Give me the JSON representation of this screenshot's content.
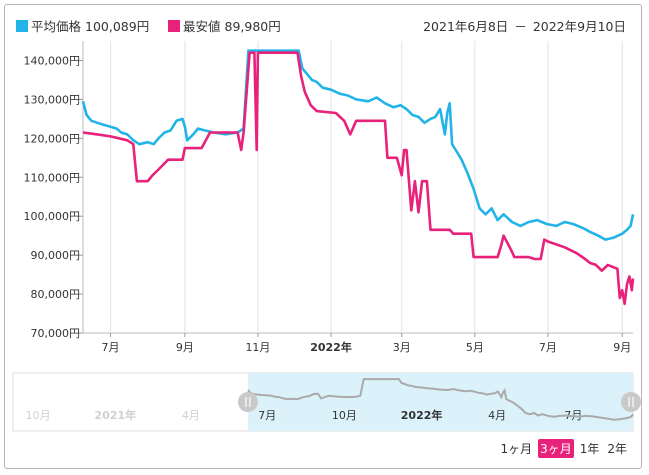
{
  "legend": {
    "avg_label": "平均価格",
    "avg_value": "100,089円",
    "min_label": "最安値",
    "min_value": "89,980円"
  },
  "range": {
    "start": "2021年6月8日",
    "sep": "－",
    "end": "2022年9月10日"
  },
  "colors": {
    "avg": "#22b4e8",
    "min": "#e8217a",
    "nav_line": "#aaaaaa",
    "nav_fill": "#dbf2fb"
  },
  "period_buttons": [
    {
      "label": "1ヶ月",
      "active": false
    },
    {
      "label": "3ヶ月",
      "active": true
    },
    {
      "label": "1年",
      "active": false
    },
    {
      "label": "2年",
      "active": false
    }
  ],
  "chart_data": {
    "type": "line",
    "title": "",
    "xlabel": "",
    "ylabel": "",
    "x_range": [
      "2021-06-08",
      "2022-09-10"
    ],
    "ylim": [
      70000,
      145000
    ],
    "y_ticks": [
      {
        "value": 70000,
        "label": "70,000円"
      },
      {
        "value": 80000,
        "label": "80,000円"
      },
      {
        "value": 90000,
        "label": "90,000円"
      },
      {
        "value": 100000,
        "label": "100,000円"
      },
      {
        "value": 110000,
        "label": "110,000円"
      },
      {
        "value": 120000,
        "label": "120,000円"
      },
      {
        "value": 130000,
        "label": "130,000円"
      },
      {
        "value": 140000,
        "label": "140,000円"
      }
    ],
    "x_ticks": [
      {
        "date": "2021-07-01",
        "label": "7月",
        "bold": false
      },
      {
        "date": "2021-09-01",
        "label": "9月",
        "bold": false
      },
      {
        "date": "2021-11-01",
        "label": "11月",
        "bold": false
      },
      {
        "date": "2022-01-01",
        "label": "2022年",
        "bold": true
      },
      {
        "date": "2022-03-01",
        "label": "3月",
        "bold": false
      },
      {
        "date": "2022-05-01",
        "label": "5月",
        "bold": false
      },
      {
        "date": "2022-07-01",
        "label": "7月",
        "bold": false
      },
      {
        "date": "2022-09-01",
        "label": "9月",
        "bold": false
      }
    ],
    "grid": {
      "vertical": true,
      "horizontal": false
    },
    "legend_position": "top-left",
    "series": [
      {
        "name": "平均価格",
        "color": "#22b4e8",
        "points": [
          [
            "2021-06-08",
            129500
          ],
          [
            "2021-06-11",
            126000
          ],
          [
            "2021-06-15",
            124500
          ],
          [
            "2021-06-20",
            124000
          ],
          [
            "2021-06-25",
            123500
          ],
          [
            "2021-07-01",
            123000
          ],
          [
            "2021-07-06",
            122500
          ],
          [
            "2021-07-10",
            121500
          ],
          [
            "2021-07-15",
            121000
          ],
          [
            "2021-07-20",
            119500
          ],
          [
            "2021-07-25",
            118500
          ],
          [
            "2021-08-01",
            119000
          ],
          [
            "2021-08-06",
            118500
          ],
          [
            "2021-08-10",
            120000
          ],
          [
            "2021-08-15",
            121500
          ],
          [
            "2021-08-20",
            122000
          ],
          [
            "2021-08-25",
            124500
          ],
          [
            "2021-08-30",
            125000
          ],
          [
            "2021-09-01",
            123000
          ],
          [
            "2021-09-03",
            119500
          ],
          [
            "2021-09-08",
            121000
          ],
          [
            "2021-09-12",
            122500
          ],
          [
            "2021-09-18",
            122000
          ],
          [
            "2021-09-25",
            121500
          ],
          [
            "2021-10-05",
            121000
          ],
          [
            "2021-10-15",
            121500
          ],
          [
            "2021-10-20",
            122500
          ],
          [
            "2021-10-24",
            142500
          ],
          [
            "2021-11-01",
            142500
          ],
          [
            "2021-11-15",
            142500
          ],
          [
            "2021-12-01",
            142500
          ],
          [
            "2021-12-05",
            142500
          ],
          [
            "2021-12-08",
            138000
          ],
          [
            "2021-12-12",
            136500
          ],
          [
            "2021-12-16",
            135000
          ],
          [
            "2021-12-20",
            134500
          ],
          [
            "2021-12-25",
            133000
          ],
          [
            "2022-01-01",
            132500
          ],
          [
            "2022-01-08",
            131500
          ],
          [
            "2022-01-15",
            131000
          ],
          [
            "2022-01-22",
            130000
          ],
          [
            "2022-02-01",
            129500
          ],
          [
            "2022-02-08",
            130500
          ],
          [
            "2022-02-15",
            129000
          ],
          [
            "2022-02-22",
            128000
          ],
          [
            "2022-02-28",
            128500
          ],
          [
            "2022-03-05",
            127500
          ],
          [
            "2022-03-10",
            126000
          ],
          [
            "2022-03-15",
            125500
          ],
          [
            "2022-03-20",
            124000
          ],
          [
            "2022-03-25",
            125000
          ],
          [
            "2022-03-29",
            125500
          ],
          [
            "2022-04-02",
            127500
          ],
          [
            "2022-04-06",
            121000
          ],
          [
            "2022-04-08",
            126500
          ],
          [
            "2022-04-10",
            129000
          ],
          [
            "2022-04-12",
            118500
          ],
          [
            "2022-04-15",
            117000
          ],
          [
            "2022-04-20",
            114500
          ],
          [
            "2022-04-25",
            111000
          ],
          [
            "2022-04-30",
            107000
          ],
          [
            "2022-05-05",
            102000
          ],
          [
            "2022-05-10",
            100500
          ],
          [
            "2022-05-15",
            102000
          ],
          [
            "2022-05-20",
            99000
          ],
          [
            "2022-05-25",
            100500
          ],
          [
            "2022-06-01",
            98500
          ],
          [
            "2022-06-08",
            97500
          ],
          [
            "2022-06-15",
            98500
          ],
          [
            "2022-06-22",
            99000
          ],
          [
            "2022-06-30",
            98000
          ],
          [
            "2022-07-08",
            97500
          ],
          [
            "2022-07-15",
            98500
          ],
          [
            "2022-07-22",
            98000
          ],
          [
            "2022-07-30",
            97000
          ],
          [
            "2022-08-05",
            96000
          ],
          [
            "2022-08-12",
            95000
          ],
          [
            "2022-08-18",
            94000
          ],
          [
            "2022-08-25",
            94500
          ],
          [
            "2022-09-01",
            95500
          ],
          [
            "2022-09-05",
            96500
          ],
          [
            "2022-09-08",
            97500
          ],
          [
            "2022-09-10",
            100500
          ]
        ]
      },
      {
        "name": "最安値",
        "color": "#e8217a",
        "points": [
          [
            "2021-06-08",
            121500
          ],
          [
            "2021-06-20",
            121000
          ],
          [
            "2021-07-01",
            120500
          ],
          [
            "2021-07-08",
            120000
          ],
          [
            "2021-07-15",
            119500
          ],
          [
            "2021-07-20",
            118500
          ],
          [
            "2021-07-23",
            109000
          ],
          [
            "2021-08-01",
            109000
          ],
          [
            "2021-08-05",
            110500
          ],
          [
            "2021-08-10",
            112000
          ],
          [
            "2021-08-18",
            114500
          ],
          [
            "2021-08-30",
            114500
          ],
          [
            "2021-09-01",
            117500
          ],
          [
            "2021-09-15",
            117500
          ],
          [
            "2021-09-22",
            121500
          ],
          [
            "2021-10-15",
            121500
          ],
          [
            "2021-10-18",
            117000
          ],
          [
            "2021-10-20",
            121500
          ],
          [
            "2021-10-25",
            142000
          ],
          [
            "2021-10-29",
            142000
          ],
          [
            "2021-10-31",
            117000
          ],
          [
            "2021-11-01",
            142000
          ],
          [
            "2021-12-01",
            142000
          ],
          [
            "2021-12-04",
            142000
          ],
          [
            "2021-12-07",
            136000
          ],
          [
            "2021-12-10",
            132000
          ],
          [
            "2021-12-15",
            128500
          ],
          [
            "2021-12-20",
            127000
          ],
          [
            "2022-01-05",
            126500
          ],
          [
            "2022-01-12",
            124500
          ],
          [
            "2022-01-17",
            121000
          ],
          [
            "2022-01-22",
            124500
          ],
          [
            "2022-02-15",
            124500
          ],
          [
            "2022-02-17",
            115000
          ],
          [
            "2022-02-25",
            115000
          ],
          [
            "2022-03-01",
            110500
          ],
          [
            "2022-03-03",
            117000
          ],
          [
            "2022-03-05",
            117000
          ],
          [
            "2022-03-09",
            101500
          ],
          [
            "2022-03-12",
            109000
          ],
          [
            "2022-03-15",
            101000
          ],
          [
            "2022-03-18",
            109000
          ],
          [
            "2022-03-22",
            109000
          ],
          [
            "2022-03-25",
            96500
          ],
          [
            "2022-04-10",
            96500
          ],
          [
            "2022-04-13",
            95500
          ],
          [
            "2022-04-28",
            95500
          ],
          [
            "2022-04-30",
            89500
          ],
          [
            "2022-05-20",
            89500
          ],
          [
            "2022-05-23",
            92500
          ],
          [
            "2022-05-25",
            95000
          ],
          [
            "2022-05-31",
            91500
          ],
          [
            "2022-06-03",
            89500
          ],
          [
            "2022-06-15",
            89500
          ],
          [
            "2022-06-20",
            89000
          ],
          [
            "2022-06-25",
            89000
          ],
          [
            "2022-06-28",
            94000
          ],
          [
            "2022-07-01",
            93500
          ],
          [
            "2022-07-15",
            92000
          ],
          [
            "2022-07-25",
            90500
          ],
          [
            "2022-08-01",
            89000
          ],
          [
            "2022-08-05",
            88000
          ],
          [
            "2022-08-10",
            87500
          ],
          [
            "2022-08-15",
            86000
          ],
          [
            "2022-08-20",
            87500
          ],
          [
            "2022-08-28",
            86500
          ],
          [
            "2022-08-30",
            79000
          ],
          [
            "2022-09-01",
            81000
          ],
          [
            "2022-09-03",
            77500
          ],
          [
            "2022-09-05",
            82500
          ],
          [
            "2022-09-07",
            84500
          ],
          [
            "2022-09-09",
            81000
          ],
          [
            "2022-09-10",
            84000
          ]
        ]
      }
    ]
  },
  "navigator": {
    "x_range": [
      "2020-09-01",
      "2022-09-10"
    ],
    "window": [
      "2021-06-08",
      "2022-09-10"
    ],
    "ticks": [
      {
        "date": "2020-10-01",
        "label": "10月",
        "bold": false
      },
      {
        "date": "2021-01-01",
        "label": "2021年",
        "bold": true
      },
      {
        "date": "2021-04-01",
        "label": "4月",
        "bold": false
      },
      {
        "date": "2021-07-01",
        "label": "7月",
        "bold": false
      },
      {
        "date": "2021-10-01",
        "label": "10月",
        "bold": false
      },
      {
        "date": "2022-01-01",
        "label": "2022年",
        "bold": true
      },
      {
        "date": "2022-04-01",
        "label": "4月",
        "bold": false
      },
      {
        "date": "2022-07-01",
        "label": "7月",
        "bold": false
      }
    ]
  }
}
